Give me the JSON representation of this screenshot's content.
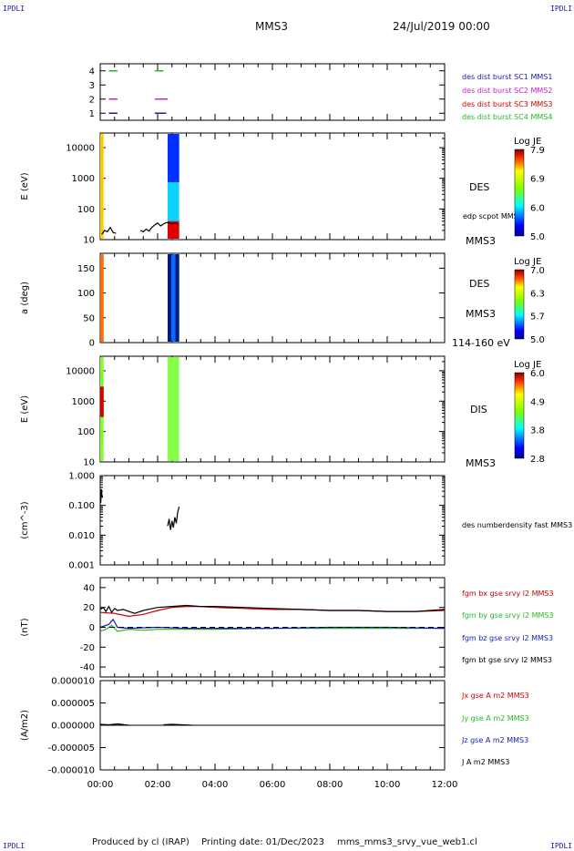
{
  "corners": {
    "tl": "IPDLI",
    "tr": "IPDLI",
    "bl": "IPDLI",
    "br": "IPDLI"
  },
  "header": {
    "spacecraft": "MMS3",
    "datetime": "24/Jul/2019 00:00"
  },
  "footer": {
    "produced": "Produced by cl (IRAP)",
    "printing": "Printing date: 01/Dec/2023",
    "file": "mms_mms3_srvy_vue_web1.cl"
  },
  "colors": {
    "mms1": "#1a1ab4",
    "mms2": "#cc22cc",
    "mms3": "#d40000",
    "mms4": "#22bb22",
    "bx": "#cc0000",
    "by": "#22bb22",
    "bz": "#1a1ab4",
    "bt": "#000000"
  },
  "chart_data": [
    {
      "type": "scatter",
      "id": "burst",
      "ylim": [
        0.5,
        4.5
      ],
      "yticks": [
        "1",
        "2",
        "3",
        "4"
      ],
      "legend": [
        {
          "label": "des dist burst SC1 MMS1",
          "color": "#1a1ab4"
        },
        {
          "label": "des dist burst SC2 MMS2",
          "color": "#cc22cc"
        },
        {
          "label": "des dist burst SC3 MMS3",
          "color": "#d40000"
        },
        {
          "label": "des dist burst SC4 MMS4",
          "color": "#22bb22"
        }
      ],
      "segments": [
        {
          "sc": 4,
          "start": 0.3,
          "end": 0.6
        },
        {
          "sc": 4,
          "start": 1.9,
          "end": 2.2
        },
        {
          "sc": 2,
          "start": 0.3,
          "end": 0.6
        },
        {
          "sc": 2,
          "start": 1.9,
          "end": 2.35
        },
        {
          "sc": 1,
          "start": 0.3,
          "end": 0.6
        },
        {
          "sc": 1,
          "start": 1.9,
          "end": 2.3
        }
      ]
    },
    {
      "type": "heatmap",
      "id": "des-energy",
      "scale": "log",
      "ylabel": "E (eV)",
      "ylim": [
        10,
        30000
      ],
      "yticks": [
        "10",
        "100",
        "1000",
        "10000"
      ],
      "right_label": "DES",
      "bottom_right": "MMS3",
      "overlay_label": "edp scpot MMS3",
      "colorbar": {
        "title": "Log JE",
        "ticks": [
          "7.9",
          "6.9",
          "6.0",
          "5.0"
        ],
        "min": 5.0,
        "max": 7.9
      },
      "blocks": [
        {
          "start": 0.0,
          "end": 0.12
        },
        {
          "start": 2.35,
          "end": 2.75
        }
      ],
      "scpot": [
        [
          0.05,
          15
        ],
        [
          0.15,
          20
        ],
        [
          0.25,
          18
        ],
        [
          0.35,
          25
        ],
        [
          0.45,
          17
        ],
        [
          0.55,
          16
        ],
        [
          1.4,
          20
        ],
        [
          1.5,
          18
        ],
        [
          1.6,
          22
        ],
        [
          1.7,
          19
        ],
        [
          1.8,
          25
        ],
        [
          1.9,
          30
        ],
        [
          2.0,
          35
        ],
        [
          2.1,
          28
        ],
        [
          2.2,
          32
        ],
        [
          2.3,
          36
        ],
        [
          2.4,
          35
        ],
        [
          2.5,
          33
        ],
        [
          2.6,
          34
        ],
        [
          2.7,
          33
        ]
      ]
    },
    {
      "type": "heatmap",
      "id": "des-pitch",
      "ylabel": "a (deg)",
      "ylim": [
        0,
        180
      ],
      "yticks": [
        "0",
        "50",
        "100",
        "150"
      ],
      "right_label": "DES",
      "right_label2": "MMS3",
      "bottom_right": "114-160 eV",
      "colorbar": {
        "title": "Log JE",
        "ticks": [
          "7.0",
          "6.3",
          "5.7",
          "5.0"
        ],
        "min": 5.0,
        "max": 7.0
      },
      "blocks": [
        {
          "start": 0.0,
          "end": 0.12
        },
        {
          "start": 2.35,
          "end": 2.75
        }
      ]
    },
    {
      "type": "heatmap",
      "id": "dis-energy",
      "scale": "log",
      "ylabel": "E (eV)",
      "ylim": [
        10,
        30000
      ],
      "yticks": [
        "10",
        "100",
        "1000",
        "10000"
      ],
      "right_label": "DIS",
      "bottom_right": "MMS3",
      "colorbar": {
        "title": "Log JE",
        "ticks": [
          "6.0",
          "4.9",
          "3.8",
          "2.8"
        ],
        "min": 2.8,
        "max": 6.0
      },
      "blocks": [
        {
          "start": 0.0,
          "end": 0.12
        },
        {
          "start": 2.35,
          "end": 2.75
        }
      ]
    },
    {
      "type": "line",
      "id": "density",
      "scale": "log",
      "ylabel": "(cm^-3)",
      "ylim": [
        0.001,
        1.0
      ],
      "yticks": [
        "0.001",
        "0.010",
        "0.100",
        "1.000"
      ],
      "legend": [
        {
          "label": "des numberdensity fast MMS3",
          "color": "#000000"
        }
      ],
      "series": [
        {
          "segments": [
            [
              [
                0.02,
                0.12
              ],
              [
                0.04,
                0.35
              ],
              [
                0.06,
                0.22
              ],
              [
                0.08,
                0.18
              ]
            ],
            [
              [
                2.35,
                0.02
              ],
              [
                2.4,
                0.035
              ],
              [
                2.45,
                0.015
              ],
              [
                2.5,
                0.03
              ],
              [
                2.55,
                0.018
              ],
              [
                2.6,
                0.04
              ],
              [
                2.65,
                0.025
              ],
              [
                2.7,
                0.06
              ],
              [
                2.75,
                0.09
              ]
            ]
          ]
        }
      ]
    },
    {
      "type": "line",
      "id": "bfield",
      "ylabel": "(nT)",
      "ylim": [
        -50,
        50
      ],
      "yticks": [
        "-40",
        "-20",
        "0",
        "20",
        "40"
      ],
      "legend": [
        {
          "label": "fgm bx gse srvy l2 MMS3",
          "color": "#cc0000"
        },
        {
          "label": "fgm by gse srvy l2 MMS3",
          "color": "#22bb22"
        },
        {
          "label": "fgm bz gse srvy l2 MMS3",
          "color": "#1a1ab4"
        },
        {
          "label": "fgm bt gse srvy l2 MMS3",
          "color": "#000000"
        }
      ],
      "series": [
        {
          "name": "bx",
          "color": "#cc0000",
          "x": [
            0,
            0.5,
            1.0,
            1.5,
            2.0,
            2.5,
            3.0,
            3.5,
            4,
            5,
            6,
            7,
            8,
            9,
            10,
            11,
            12
          ],
          "y": [
            15,
            14,
            11,
            13,
            17,
            20,
            21,
            21,
            20,
            19,
            18,
            18,
            17,
            17,
            16,
            16,
            17
          ]
        },
        {
          "name": "by",
          "color": "#22bb22",
          "x": [
            0,
            0.2,
            0.4,
            0.6,
            0.8,
            1,
            1.5,
            2,
            3,
            4,
            6,
            8,
            10,
            12
          ],
          "y": [
            -4,
            -2,
            2,
            -4,
            -3,
            -2,
            -3,
            -2,
            -2,
            -2,
            -1,
            -1,
            -1,
            -1
          ]
        },
        {
          "name": "bz",
          "color": "#1a1ab4",
          "x": [
            0,
            0.3,
            0.45,
            0.6,
            1,
            2,
            3,
            4,
            6,
            8,
            10,
            12
          ],
          "y": [
            0,
            3,
            8,
            0,
            -1,
            0,
            -1,
            -1,
            -1,
            0,
            0,
            -1
          ]
        },
        {
          "name": "bt",
          "color": "#000000",
          "x": [
            0,
            0.1,
            0.2,
            0.3,
            0.4,
            0.5,
            0.6,
            0.8,
            1.0,
            1.2,
            1.5,
            2.0,
            2.5,
            3.0,
            3.5,
            4,
            5,
            6,
            7,
            8,
            9,
            10,
            11,
            12
          ],
          "y": [
            18,
            20,
            16,
            21,
            15,
            19,
            17,
            18,
            16,
            14,
            17,
            20,
            21,
            22,
            21,
            21,
            20,
            19,
            18,
            17,
            17,
            16,
            16,
            18
          ]
        }
      ]
    },
    {
      "type": "line",
      "id": "current",
      "ylabel": "(A/m2)",
      "ylim": [
        -1e-05,
        1e-05
      ],
      "yticks": [
        "-0.000010",
        "-0.000005",
        "0.000000",
        "0.000005",
        "0.000010"
      ],
      "legend": [
        {
          "label": "Jx gse A m2 MMS3",
          "color": "#cc0000"
        },
        {
          "label": "Jy gse A m2 MMS3",
          "color": "#22bb22"
        },
        {
          "label": "Jz gse A m2 MMS3",
          "color": "#1a1ab4"
        },
        {
          "label": "J A m2 MMS3",
          "color": "#000000"
        }
      ],
      "series": [
        {
          "segments": [
            [
              [
                0.0,
                2e-07
              ],
              [
                0.3,
                1e-07
              ],
              [
                0.6,
                3e-07
              ],
              [
                1.0,
                0.0
              ]
            ],
            [
              [
                2.2,
                1e-07
              ],
              [
                2.5,
                2e-07
              ],
              [
                3.2,
                0.0
              ]
            ]
          ]
        }
      ]
    }
  ],
  "xaxis": {
    "ticks": [
      "00:00",
      "02:00",
      "04:00",
      "06:00",
      "08:00",
      "10:00",
      "12:00"
    ],
    "range_hours": [
      0,
      12
    ]
  }
}
